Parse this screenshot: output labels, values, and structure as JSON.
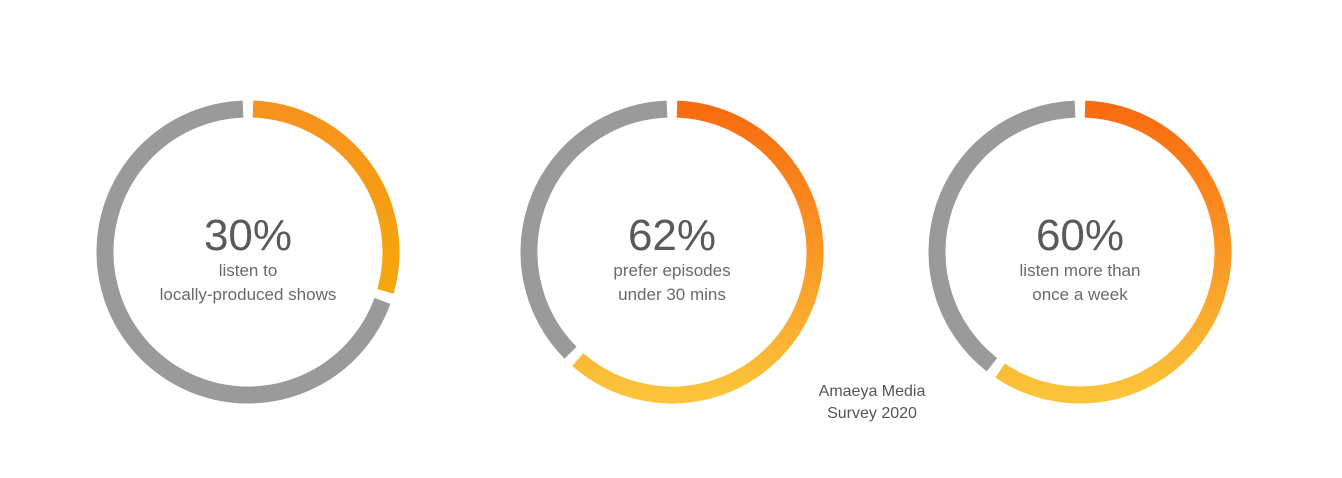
{
  "chart_data": [
    {
      "type": "pie",
      "value": 30,
      "remainder": 70,
      "percent_label": "30%",
      "caption_lines": [
        "listen to",
        "locally-produced shows"
      ],
      "colors": {
        "highlight_start": "#f7921e",
        "highlight_end": "#f4b400",
        "rest": "#9a9a9a"
      }
    },
    {
      "type": "pie",
      "value": 62,
      "remainder": 38,
      "percent_label": "62%",
      "caption_lines": [
        "prefer episodes",
        "under 30 mins"
      ],
      "colors": {
        "highlight_start": "#f96b10",
        "highlight_end": "#fbc43a",
        "rest": "#9a9a9a"
      }
    },
    {
      "type": "pie",
      "value": 60,
      "remainder": 40,
      "percent_label": "60%",
      "caption_lines": [
        "listen more than",
        "once a week"
      ],
      "colors": {
        "highlight_start": "#f96b10",
        "highlight_end": "#fbc43a",
        "rest": "#9a9a9a"
      }
    }
  ],
  "source": {
    "lines": [
      "Amaeya Media",
      "Survey 2020"
    ]
  }
}
